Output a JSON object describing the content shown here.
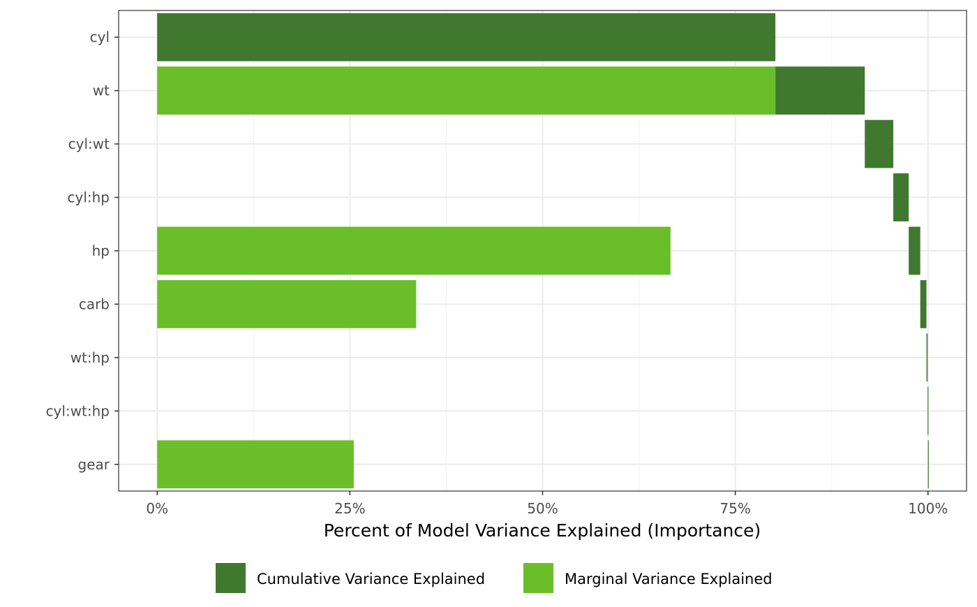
{
  "chart_data": {
    "type": "bar",
    "orientation": "horizontal",
    "xlabel": "Percent of Model Variance Explained (Importance)",
    "ylabel": "",
    "xlim": [
      -0.05,
      1.05
    ],
    "x_ticks": [
      0,
      0.25,
      0.5,
      0.75,
      1.0
    ],
    "x_tick_labels": [
      "0%",
      "25%",
      "50%",
      "75%",
      "100%"
    ],
    "grid": true,
    "legend_position": "bottom",
    "categories": [
      "cyl",
      "wt",
      "cyl:wt",
      "cyl:hp",
      "hp",
      "carb",
      "wt:hp",
      "cyl:wt:hp",
      "gear"
    ],
    "series": [
      {
        "name": "Cumulative Variance Explained",
        "color": "#41782f",
        "ranges": [
          [
            0.0,
            0.802
          ],
          [
            0.802,
            0.918
          ],
          [
            0.918,
            0.955
          ],
          [
            0.955,
            0.975
          ],
          [
            0.975,
            0.99
          ],
          [
            0.99,
            0.998
          ],
          [
            0.998,
            0.9995
          ],
          [
            0.9995,
            0.9999
          ],
          [
            0.9999,
            1.0
          ]
        ]
      },
      {
        "name": "Marginal Variance Explained",
        "color": "#6abe2a",
        "values": [
          0.0,
          0.802,
          0.0,
          0.0,
          0.666,
          0.336,
          0.0,
          0.0,
          0.255
        ]
      }
    ]
  }
}
